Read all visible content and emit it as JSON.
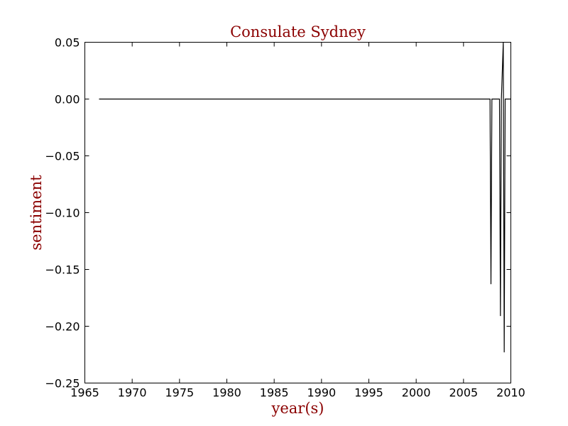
{
  "chart_data": {
    "type": "line",
    "title": "Consulate Sydney",
    "xlabel": "year(s)",
    "ylabel": "sentiment",
    "xlim": [
      1965,
      2010
    ],
    "ylim": [
      -0.25,
      0.05
    ],
    "xticks": [
      1965,
      1970,
      1975,
      1980,
      1985,
      1990,
      1995,
      2000,
      2005,
      2010
    ],
    "yticks": [
      0.05,
      0.0,
      -0.05,
      -0.1,
      -0.15,
      -0.2,
      -0.25
    ],
    "xtick_labels": [
      "1965",
      "1970",
      "1975",
      "1980",
      "1985",
      "1990",
      "1995",
      "2000",
      "2005",
      "2010"
    ],
    "ytick_labels": [
      "0.05",
      "0.00",
      "−0.05",
      "−0.10",
      "−0.15",
      "−0.20",
      "−0.25"
    ],
    "grid": false,
    "legend": "none",
    "series": [
      {
        "color": "#000000",
        "x": [
          1966.5,
          2007.8,
          2007.9,
          2008.0,
          2008.8,
          2008.9,
          2009.0,
          2009.2,
          2009.3,
          2009.4,
          2010.0
        ],
        "y": [
          0.0,
          0.0,
          -0.163,
          0.0,
          0.0,
          -0.191,
          0.0,
          0.05,
          -0.223,
          0.0,
          0.0
        ]
      }
    ],
    "colors": {
      "title": "#8b0000",
      "axis_label": "#8b0000",
      "line": "#000000",
      "axes": "#000000"
    }
  }
}
